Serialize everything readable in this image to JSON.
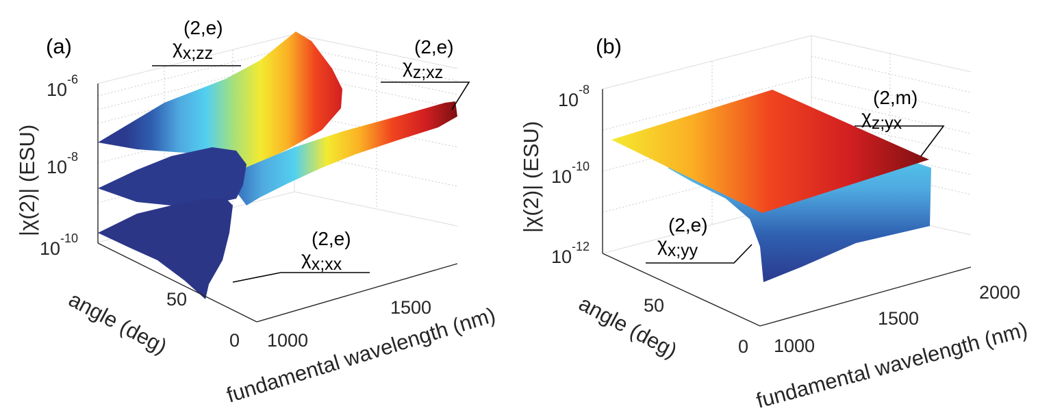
{
  "chart_data": [
    {
      "type": "surface",
      "panel_label": "(a)",
      "zlabel": "|χ(2)| (ESU)",
      "ylabel": "angle (deg)",
      "xlabel": "fundamental wavelength (nm)",
      "zscale": "log",
      "zlim": [
        1e-10,
        1e-06
      ],
      "xlim": [
        900,
        1800
      ],
      "ylim": [
        0,
        90
      ],
      "z_ticks": [
        {
          "base": "10",
          "exp": "-10"
        },
        {
          "base": "10",
          "exp": "-8"
        },
        {
          "base": "10",
          "exp": "-6"
        }
      ],
      "x_ticks": [
        "1000",
        "1500"
      ],
      "y_ticks": [
        "0",
        "50"
      ],
      "series": [
        {
          "name": "χx;zz(2,e)",
          "label_sup": "(2,e)",
          "label_sub": "x;zz",
          "z_range": [
            4e-08,
            1e-06
          ]
        },
        {
          "name": "χz;xz(2,e)",
          "label_sup": "(2,e)",
          "label_sub": "z;xz",
          "z_range": [
            1e-09,
            2e-07
          ]
        },
        {
          "name": "χx;xx(2,e)",
          "label_sup": "(2,e)",
          "label_sub": "x;xx",
          "z_range": [
            1e-10,
            1e-09
          ]
        }
      ]
    },
    {
      "type": "surface",
      "panel_label": "(b)",
      "zlabel": "|χ(2)| (ESU)",
      "ylabel": "angle (deg)",
      "xlabel": "fundamental wavelength (nm)",
      "zscale": "log",
      "zlim": [
        1e-12,
        1e-08
      ],
      "xlim": [
        900,
        2100
      ],
      "ylim": [
        0,
        90
      ],
      "z_ticks": [
        {
          "base": "10",
          "exp": "-12"
        },
        {
          "base": "10",
          "exp": "-10"
        },
        {
          "base": "10",
          "exp": "-8"
        }
      ],
      "x_ticks": [
        "1000",
        "1500",
        "2000"
      ],
      "y_ticks": [
        "0",
        "50"
      ],
      "series": [
        {
          "name": "χz;yx(2,m)",
          "label_sup": "(2,m)",
          "label_sub": "z;yx",
          "z_range": [
            2e-10,
            8e-09
          ]
        },
        {
          "name": "χx;yy(2,e)",
          "label_sup": "(2,e)",
          "label_sub": "x;yy",
          "z_range": [
            1e-12,
            3e-11
          ]
        }
      ]
    }
  ],
  "colormap": [
    "#2b3a8e",
    "#2f5fb0",
    "#4fa9e0",
    "#53d0ef",
    "#a7e07a",
    "#f4ea30",
    "#fbb024",
    "#f0441f",
    "#d21f21",
    "#7d1012"
  ]
}
